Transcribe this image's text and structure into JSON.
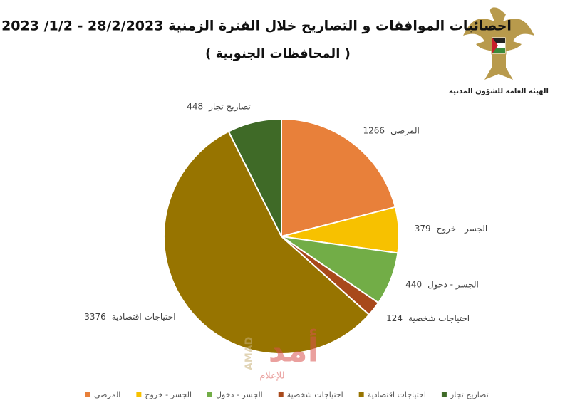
{
  "header": {
    "org": "الهيئة العامة للشؤون المدنية"
  },
  "watermark": {
    "name": "أمد",
    "sub": "للإعلام",
    "latin": "AMAD"
  },
  "chart_data": {
    "type": "pie",
    "title": "احصائيات الموافقات و التصاريح خلال الفترة الزمنية  28/2/2023  - 1/2/ 2023",
    "subtitle": "( المحافظات الجنوبية )",
    "categories": [
      "المرضى",
      "الجسر - خروج",
      "الجسر - دخول",
      "احتياجات شخصية",
      "احتياجات اقتصادية",
      "تصاريح تجار"
    ],
    "values": [
      1266,
      379,
      440,
      124,
      3376,
      448
    ],
    "colors": [
      "#e8803a",
      "#f7c100",
      "#72ad47",
      "#a8491b",
      "#977400",
      "#3f6a27"
    ]
  }
}
